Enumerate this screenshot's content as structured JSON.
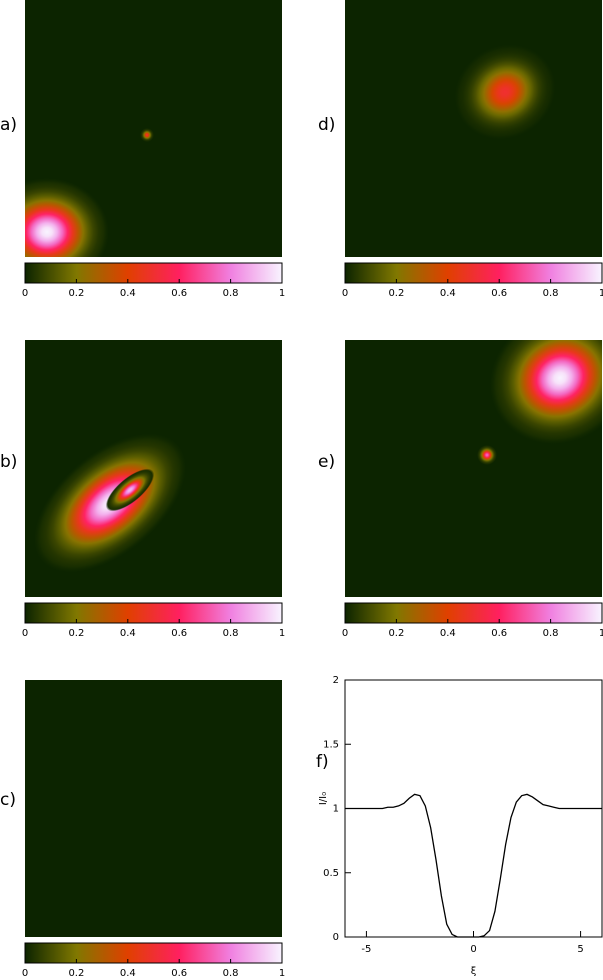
{
  "chart_data": [
    {
      "type": "heatmap",
      "label": "a)",
      "clim": [
        0,
        1
      ],
      "cticks": [
        0,
        0.2,
        0.4,
        0.6,
        0.8,
        1
      ],
      "colorscale": [
        "#0c2400",
        "#807800",
        "#e04000",
        "#ff2060",
        "#f080e0",
        "#f8f4ff"
      ]
    },
    {
      "type": "heatmap",
      "label": "d)",
      "clim": [
        0,
        1
      ],
      "cticks": [
        0,
        0.2,
        0.4,
        0.6,
        0.8,
        1
      ],
      "colorscale": [
        "#0c2400",
        "#807800",
        "#e04000",
        "#ff2060",
        "#f080e0",
        "#f8f4ff"
      ]
    },
    {
      "type": "heatmap",
      "label": "b)",
      "clim": [
        0,
        1
      ],
      "cticks": [
        0,
        0.2,
        0.4,
        0.6,
        0.8,
        1
      ],
      "colorscale": [
        "#0c2400",
        "#807800",
        "#e04000",
        "#ff2060",
        "#f080e0",
        "#f8f4ff"
      ]
    },
    {
      "type": "heatmap",
      "label": "e)",
      "clim": [
        0,
        1
      ],
      "cticks": [
        0,
        0.2,
        0.4,
        0.6,
        0.8,
        1
      ],
      "colorscale": [
        "#0c2400",
        "#807800",
        "#e04000",
        "#ff2060",
        "#f080e0",
        "#f8f4ff"
      ]
    },
    {
      "type": "heatmap",
      "label": "c)",
      "clim": [
        0,
        1
      ],
      "cticks": [
        0,
        0.2,
        0.4,
        0.6,
        0.8,
        1
      ],
      "colorscale": [
        "#0c2400",
        "#807800",
        "#e04000",
        "#ff2060",
        "#f080e0",
        "#f8f4ff"
      ]
    },
    {
      "type": "line",
      "label": "f)",
      "xlabel": "ξ",
      "ylabel": "I/I₀",
      "color": "#000000",
      "x": [
        -6,
        -5.75,
        -5.5,
        -5.25,
        -5,
        -4.75,
        -4.5,
        -4.25,
        -4,
        -3.75,
        -3.5,
        -3.25,
        -3,
        -2.75,
        -2.5,
        -2.25,
        -2,
        -1.75,
        -1.5,
        -1.25,
        -1,
        -0.75,
        -0.5,
        -0.25,
        0,
        0.25,
        0.5,
        0.75,
        1,
        1.25,
        1.5,
        1.75,
        2,
        2.25,
        2.5,
        2.75,
        3,
        3.25,
        3.5,
        3.75,
        4,
        4.25,
        4.5,
        4.75,
        5,
        5.25,
        5.5,
        5.75,
        6
      ],
      "values": [
        1.0,
        1.0,
        1.0,
        1.0,
        1.0,
        1.0,
        1.0,
        1.0,
        1.01,
        1.01,
        1.02,
        1.04,
        1.08,
        1.11,
        1.1,
        1.02,
        0.85,
        0.6,
        0.32,
        0.1,
        0.02,
        0,
        0,
        0,
        0,
        0,
        0.01,
        0.05,
        0.2,
        0.45,
        0.72,
        0.93,
        1.05,
        1.1,
        1.11,
        1.09,
        1.06,
        1.03,
        1.02,
        1.01,
        1.0,
        1.0,
        1.0,
        1.0,
        1.0,
        1.0,
        1.0,
        1.0,
        1.0
      ],
      "xlim": [
        -6,
        6
      ],
      "ylim": [
        0,
        2
      ],
      "xticks": [
        -5,
        0,
        5
      ],
      "yticks": [
        0,
        0.5,
        1,
        1.5,
        2
      ]
    }
  ]
}
